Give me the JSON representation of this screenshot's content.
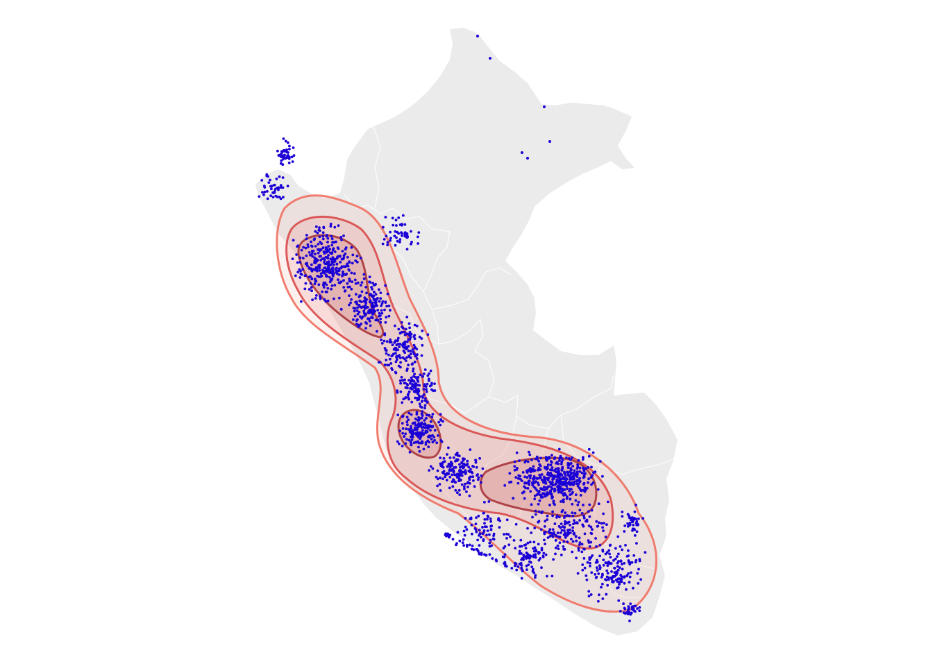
{
  "map": {
    "type": "point-density-map",
    "region_fill": "#ebebeb",
    "region_border_color": "#ffffff",
    "point_color": "#1a00d6",
    "contour_colors": [
      "#f07060",
      "#d84a4a",
      "#a8343a"
    ],
    "contour_fill_color": "#e8726a",
    "contour_levels": 3,
    "legend": "none",
    "title": ""
  }
}
